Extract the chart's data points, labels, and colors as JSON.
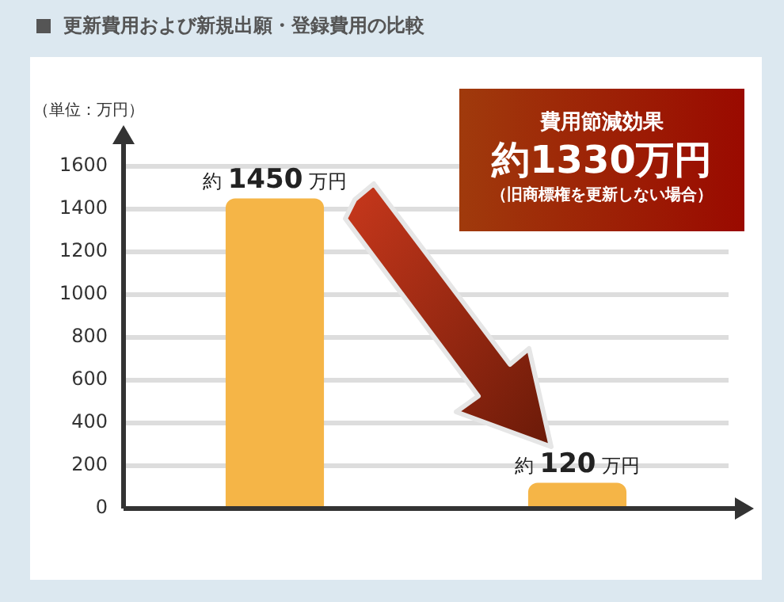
{
  "chart_data": {
    "type": "bar",
    "title": "更新費用および新規出願・登録費用の比較",
    "ylabel": "（単位：万円）",
    "categories": [
      null,
      null
    ],
    "values": [
      1450,
      120
    ],
    "value_labels": [
      "約 1450 万円",
      "約 120 万円"
    ],
    "color": "#f5b547",
    "ylim": [
      0,
      1600
    ],
    "yticks": [
      0,
      200,
      400,
      600,
      800,
      1000,
      1200,
      1400,
      1600
    ],
    "grid": "y",
    "legend": false,
    "annotations": [
      "費用節減効果",
      "約1330万円",
      "（旧商標権を更新しない場合）"
    ]
  }
}
